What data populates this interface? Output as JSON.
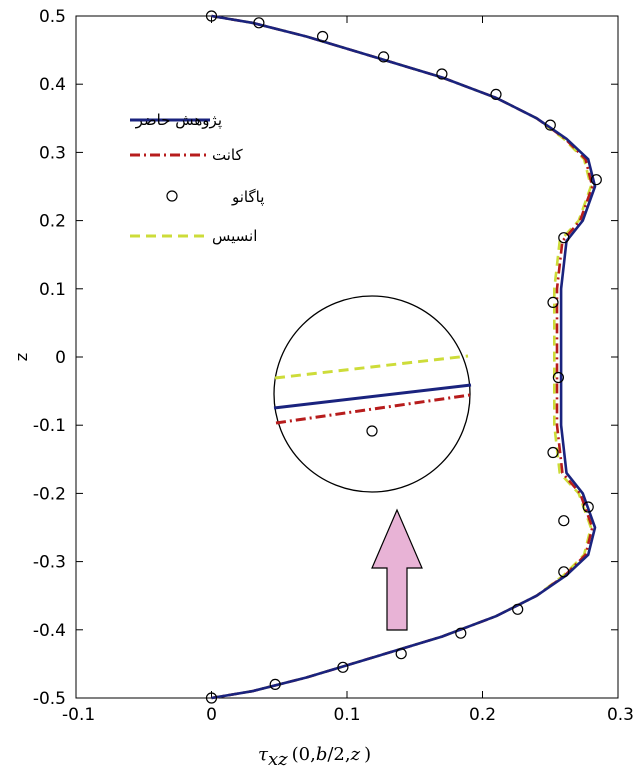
{
  "chart_data": {
    "type": "line",
    "xlabel_parts": {
      "tau": "τ",
      "sub": "xz",
      "args_open": "(",
      "args_zero": "0,",
      "args_b": "b",
      "args_mid": "/2,",
      "args_z": "z",
      "args_close": ")"
    },
    "ylabel": "z",
    "xlim": [
      -0.1,
      0.3
    ],
    "ylim": [
      -0.5,
      0.5
    ],
    "xticks": [
      "-0.1",
      "0",
      "0.1",
      "0.2",
      "0.3"
    ],
    "yticks": [
      "-0.5",
      "-0.4",
      "-0.3",
      "-0.2",
      "-0.1",
      "0",
      "0.1",
      "0.2",
      "0.3",
      "0.4",
      "0.5"
    ],
    "grid": false,
    "legend_position": "top-left",
    "series": [
      {
        "name": "پژوهش حاضر",
        "style": "solid",
        "color": "#1a237e",
        "x": [
          0,
          0.03,
          0.07,
          0.12,
          0.17,
          0.21,
          0.24,
          0.262,
          0.278,
          0.283,
          0.274,
          0.262,
          0.258,
          0.258,
          0.258,
          0.262,
          0.274,
          0.283,
          0.278,
          0.262,
          0.24,
          0.21,
          0.17,
          0.12,
          0.07,
          0.03,
          0
        ],
        "y": [
          0.5,
          0.49,
          0.47,
          0.44,
          0.41,
          0.38,
          0.35,
          0.32,
          0.29,
          0.25,
          0.2,
          0.17,
          0.1,
          0,
          -0.1,
          -0.17,
          -0.2,
          -0.25,
          -0.29,
          -0.32,
          -0.35,
          -0.38,
          -0.41,
          -0.44,
          -0.47,
          -0.49,
          -0.5
        ]
      },
      {
        "name": "کانت",
        "style": "dashdot",
        "color": "#b71c1c",
        "x": [
          0,
          0.03,
          0.07,
          0.12,
          0.17,
          0.21,
          0.24,
          0.261,
          0.276,
          0.281,
          0.272,
          0.259,
          0.255,
          0.255,
          0.255,
          0.259,
          0.272,
          0.281,
          0.276,
          0.261,
          0.24,
          0.21,
          0.17,
          0.12,
          0.07,
          0.03,
          0
        ],
        "y": [
          0.5,
          0.49,
          0.47,
          0.44,
          0.41,
          0.38,
          0.35,
          0.32,
          0.29,
          0.25,
          0.2,
          0.17,
          0.1,
          0,
          -0.1,
          -0.17,
          -0.2,
          -0.25,
          -0.29,
          -0.32,
          -0.35,
          -0.38,
          -0.41,
          -0.44,
          -0.47,
          -0.49,
          -0.5
        ]
      },
      {
        "name": "پاگانو",
        "style": "markers",
        "color": "#000000",
        "x": [
          0,
          0.035,
          0.082,
          0.127,
          0.17,
          0.21,
          0.25,
          0.284,
          0.26,
          0.252,
          0.256,
          0.252,
          0.26,
          0.278,
          0.26,
          0.226,
          0.184,
          0.14,
          0.097,
          0.047,
          0
        ],
        "y": [
          0.5,
          0.49,
          0.47,
          0.44,
          0.415,
          0.385,
          0.34,
          0.26,
          0.175,
          0.08,
          -0.03,
          -0.14,
          -0.24,
          -0.22,
          -0.315,
          -0.37,
          -0.405,
          -0.435,
          -0.455,
          -0.48,
          -0.5
        ]
      },
      {
        "name": "انسیس",
        "style": "dashed",
        "color": "#cddc39",
        "x": [
          0,
          0.03,
          0.07,
          0.12,
          0.17,
          0.21,
          0.24,
          0.26,
          0.275,
          0.28,
          0.271,
          0.257,
          0.253,
          0.253,
          0.253,
          0.257,
          0.271,
          0.28,
          0.275,
          0.26,
          0.24,
          0.21,
          0.17,
          0.12,
          0.07,
          0.03,
          0
        ],
        "y": [
          0.5,
          0.49,
          0.47,
          0.44,
          0.41,
          0.38,
          0.35,
          0.32,
          0.29,
          0.25,
          0.2,
          0.17,
          0.1,
          0,
          -0.1,
          -0.17,
          -0.2,
          -0.25,
          -0.29,
          -0.32,
          -0.35,
          -0.38,
          -0.41,
          -0.44,
          -0.47,
          -0.49,
          -0.5
        ]
      }
    ],
    "annotations": {
      "zoom_inset": "circle magnifier near z = 0 showing series separation",
      "arrow_color": "#e8b3d6"
    }
  }
}
